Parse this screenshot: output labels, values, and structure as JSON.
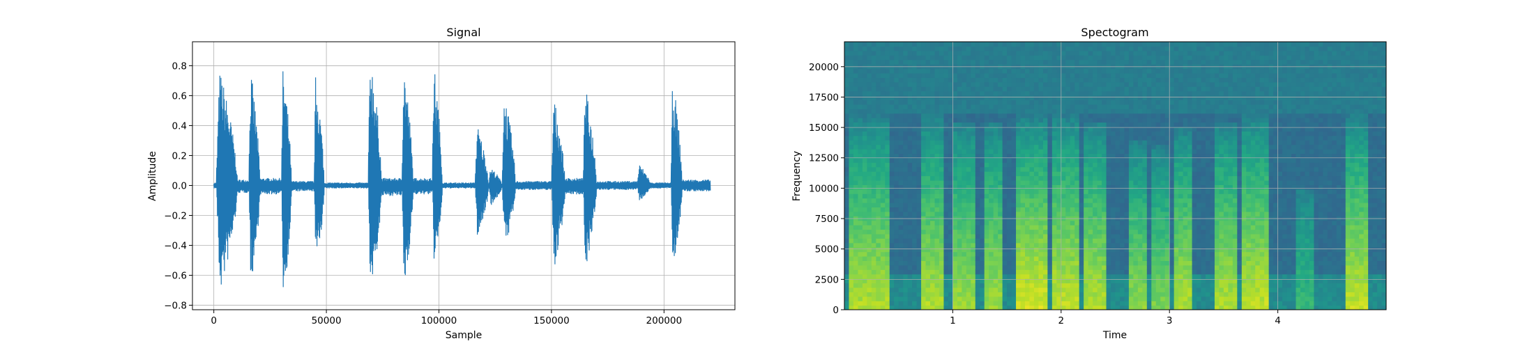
{
  "chart_data": [
    {
      "type": "line",
      "title": "Signal",
      "xlabel": "Sample",
      "ylabel": "Amplitude",
      "xlim": [
        -9500,
        231500
      ],
      "ylim": [
        -0.83,
        0.96
      ],
      "grid": true,
      "line_color": "#1f77b4",
      "x_ticks": [
        0,
        50000,
        100000,
        150000,
        200000
      ],
      "x_tick_labels": [
        "0",
        "50000",
        "100000",
        "150000",
        "200000"
      ],
      "y_ticks": [
        -0.8,
        -0.6,
        -0.4,
        -0.2,
        0.0,
        0.2,
        0.4,
        0.6,
        0.8
      ],
      "y_tick_labels": [
        "−0.8",
        "−0.6",
        "−0.4",
        "−0.2",
        "0.0",
        "0.2",
        "0.4",
        "0.6",
        "0.8"
      ],
      "bursts": [
        {
          "start": 0,
          "end": 1000,
          "max": 0.02,
          "min": -0.02
        },
        {
          "start": 1000,
          "end": 10500,
          "max": 0.76,
          "min": -0.7
        },
        {
          "start": 10500,
          "end": 15500,
          "max": 0.04,
          "min": -0.05
        },
        {
          "start": 15500,
          "end": 20500,
          "max": 0.76,
          "min": -0.65
        },
        {
          "start": 20500,
          "end": 30000,
          "max": 0.05,
          "min": -0.06
        },
        {
          "start": 30000,
          "end": 34500,
          "max": 0.78,
          "min": -0.75
        },
        {
          "start": 34500,
          "end": 44500,
          "max": 0.03,
          "min": -0.04
        },
        {
          "start": 44500,
          "end": 49000,
          "max": 0.74,
          "min": -0.53
        },
        {
          "start": 49000,
          "end": 68500,
          "max": 0.02,
          "min": -0.02
        },
        {
          "start": 68500,
          "end": 74500,
          "max": 0.88,
          "min": -0.7
        },
        {
          "start": 74500,
          "end": 83500,
          "max": 0.05,
          "min": -0.07
        },
        {
          "start": 83500,
          "end": 88500,
          "max": 0.81,
          "min": -0.68
        },
        {
          "start": 88500,
          "end": 97000,
          "max": 0.05,
          "min": -0.06
        },
        {
          "start": 97000,
          "end": 101500,
          "max": 0.8,
          "min": -0.51
        },
        {
          "start": 101500,
          "end": 116000,
          "max": 0.02,
          "min": -0.02
        },
        {
          "start": 116000,
          "end": 122000,
          "max": 0.4,
          "min": -0.34
        },
        {
          "start": 122000,
          "end": 128000,
          "max": 0.12,
          "min": -0.13
        },
        {
          "start": 128000,
          "end": 134000,
          "max": 0.61,
          "min": -0.41
        },
        {
          "start": 134000,
          "end": 150000,
          "max": 0.03,
          "min": -0.03
        },
        {
          "start": 150000,
          "end": 156000,
          "max": 0.58,
          "min": -0.55
        },
        {
          "start": 156000,
          "end": 164000,
          "max": 0.05,
          "min": -0.06
        },
        {
          "start": 164000,
          "end": 170000,
          "max": 0.65,
          "min": -0.54
        },
        {
          "start": 170000,
          "end": 188000,
          "max": 0.03,
          "min": -0.03
        },
        {
          "start": 188000,
          "end": 194000,
          "max": 0.14,
          "min": -0.1
        },
        {
          "start": 194000,
          "end": 203000,
          "max": 0.02,
          "min": -0.02
        },
        {
          "start": 203000,
          "end": 208000,
          "max": 0.7,
          "min": -0.53
        },
        {
          "start": 208000,
          "end": 220500,
          "max": 0.04,
          "min": -0.04
        }
      ]
    },
    {
      "type": "heatmap",
      "title": "Spectogram",
      "xlabel": "Time",
      "ylabel": "Frequency",
      "xlim": [
        0,
        5.0
      ],
      "ylim": [
        0,
        22050
      ],
      "grid": true,
      "colormap": "viridis",
      "x_ticks": [
        1,
        2,
        3,
        4
      ],
      "x_tick_labels": [
        "1",
        "2",
        "3",
        "4"
      ],
      "y_ticks": [
        0,
        2500,
        5000,
        7500,
        10000,
        12500,
        15000,
        17500,
        20000
      ],
      "y_tick_labels": [
        "0",
        "2500",
        "5000",
        "7500",
        "10000",
        "12500",
        "15000",
        "17500",
        "20000"
      ],
      "energy_bands": [
        {
          "start": 0.05,
          "end": 0.42,
          "intensity": 0.85,
          "ceiling": 16000
        },
        {
          "start": 0.7,
          "end": 0.92,
          "intensity": 0.85,
          "ceiling": 16000
        },
        {
          "start": 1.02,
          "end": 1.2,
          "intensity": 0.8,
          "ceiling": 15500
        },
        {
          "start": 1.28,
          "end": 1.45,
          "intensity": 0.8,
          "ceiling": 15500
        },
        {
          "start": 1.58,
          "end": 1.88,
          "intensity": 0.95,
          "ceiling": 16000
        },
        {
          "start": 1.9,
          "end": 2.18,
          "intensity": 0.9,
          "ceiling": 16000
        },
        {
          "start": 2.2,
          "end": 2.4,
          "intensity": 0.85,
          "ceiling": 15500
        },
        {
          "start": 2.62,
          "end": 2.8,
          "intensity": 0.75,
          "ceiling": 14000
        },
        {
          "start": 2.85,
          "end": 3.02,
          "intensity": 0.7,
          "ceiling": 13500
        },
        {
          "start": 3.05,
          "end": 3.2,
          "intensity": 0.85,
          "ceiling": 15000
        },
        {
          "start": 3.4,
          "end": 3.62,
          "intensity": 0.85,
          "ceiling": 15500
        },
        {
          "start": 3.65,
          "end": 3.9,
          "intensity": 0.9,
          "ceiling": 16000
        },
        {
          "start": 4.15,
          "end": 4.35,
          "intensity": 0.45,
          "ceiling": 10000
        },
        {
          "start": 4.62,
          "end": 4.85,
          "intensity": 0.9,
          "ceiling": 16000
        }
      ]
    }
  ]
}
